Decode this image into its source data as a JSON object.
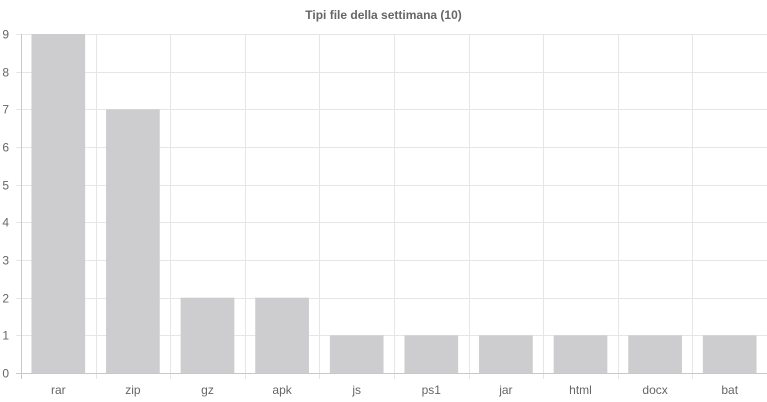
{
  "chart_data": {
    "type": "bar",
    "title": "Tipi file della settimana (10)",
    "categories": [
      "rar",
      "zip",
      "gz",
      "apk",
      "js",
      "ps1",
      "jar",
      "html",
      "docx",
      "bat"
    ],
    "values": [
      9,
      7,
      2,
      2,
      1,
      1,
      1,
      1,
      1,
      1
    ],
    "ylim": [
      0,
      9
    ],
    "yticks": [
      0,
      1,
      2,
      3,
      4,
      5,
      6,
      7,
      8,
      9
    ],
    "grid": true,
    "legend": "none",
    "bar_color": "#cdcdcf",
    "grid_color": "#e6e6e6"
  }
}
